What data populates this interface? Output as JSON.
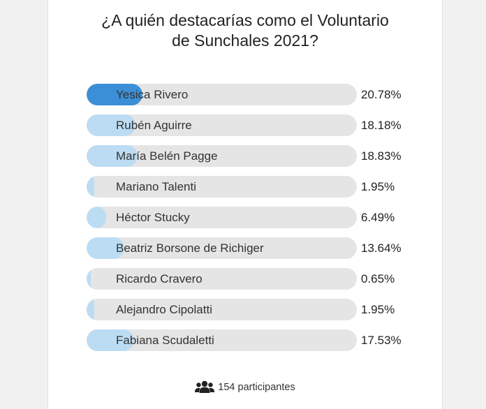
{
  "poll": {
    "title_line1": "¿A quién destacarías como el Voluntario",
    "title_line2": "de Sunchales 2021?",
    "options": [
      {
        "label": "Yesica Rivero",
        "percent_text": "20.78%",
        "fraction": 0.2078,
        "selected": true
      },
      {
        "label": "Rubén Aguirre",
        "percent_text": "18.18%",
        "fraction": 0.1818,
        "selected": false
      },
      {
        "label": "María Belén Pagge",
        "percent_text": "18.83%",
        "fraction": 0.1883,
        "selected": false
      },
      {
        "label": "Mariano Talenti",
        "percent_text": "1.95%",
        "fraction": 0.0195,
        "selected": false
      },
      {
        "label": "Héctor Stucky",
        "percent_text": "6.49%",
        "fraction": 0.0649,
        "selected": false
      },
      {
        "label": "Beatriz Borsone de Richiger",
        "percent_text": "13.64%",
        "fraction": 0.1364,
        "selected": false
      },
      {
        "label": "Ricardo Cravero",
        "percent_text": "0.65%",
        "fraction": 0.0065,
        "selected": false
      },
      {
        "label": "Alejandro Cipolatti",
        "percent_text": "1.95%",
        "fraction": 0.0195,
        "selected": false
      },
      {
        "label": "Fabiana Scudaletti",
        "percent_text": "17.53%",
        "fraction": 0.1753,
        "selected": false
      }
    ],
    "participants_text": "154 participantes",
    "participants_icon": "users-icon"
  },
  "colors": {
    "selected_fill": "#3b8fd6",
    "fill": "#bcdcf3",
    "track": "#e5e5e5"
  }
}
